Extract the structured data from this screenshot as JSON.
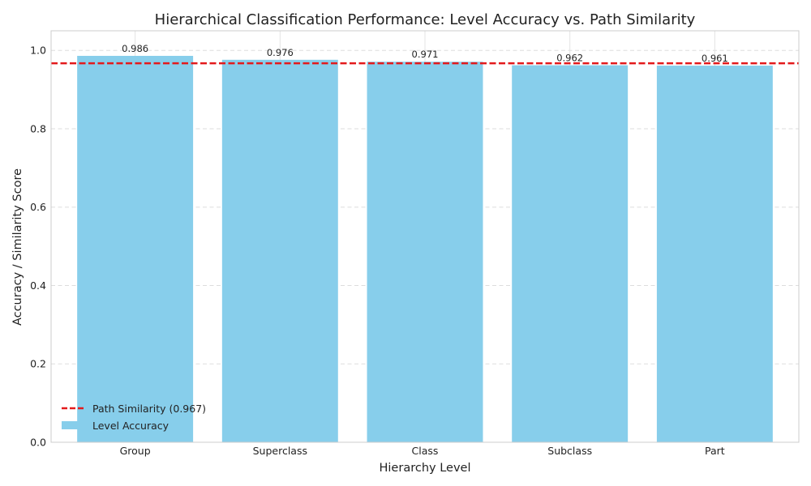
{
  "colors": {
    "bar": "#87ceeb",
    "path_line": "#e31a1c",
    "frame": "#cccccc",
    "grid": "#dddddd"
  },
  "chart_data": {
    "type": "bar",
    "title": "Hierarchical Classification Performance: Level Accuracy vs. Path Similarity",
    "xlabel": "Hierarchy Level",
    "ylabel": "Accuracy / Similarity Score",
    "categories": [
      "Group",
      "Superclass",
      "Class",
      "Subclass",
      "Part"
    ],
    "series": [
      {
        "name": "Level Accuracy",
        "values": [
          0.986,
          0.976,
          0.971,
          0.962,
          0.961
        ]
      }
    ],
    "value_labels": [
      "0.986",
      "0.976",
      "0.971",
      "0.962",
      "0.961"
    ],
    "reference_line": {
      "name": "Path Similarity (0.967)",
      "value": 0.967,
      "style": "dashed"
    },
    "ylim": [
      0,
      1.05
    ],
    "yticks": [
      0.0,
      0.2,
      0.4,
      0.6,
      0.8,
      1.0
    ],
    "ytick_labels": [
      "0.0",
      "0.2",
      "0.4",
      "0.6",
      "0.8",
      "1.0"
    ],
    "grid": true,
    "legend_position": "lower-left"
  }
}
